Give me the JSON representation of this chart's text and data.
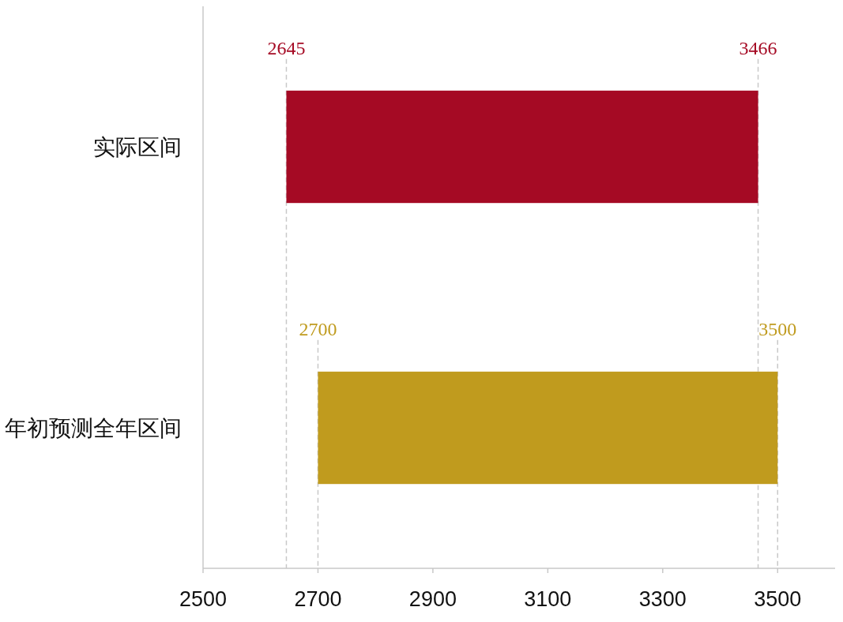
{
  "chart_data": {
    "type": "bar",
    "orientation": "horizontal",
    "categories": [
      "实际区间",
      "年初预测全年区间"
    ],
    "values": [
      821,
      800
    ],
    "base": [
      2645,
      2700
    ],
    "colors": [
      "#a50a24",
      "#c09b1e"
    ],
    "xlim": [
      2500,
      3600
    ],
    "xticks": [
      2500,
      2700,
      2900,
      3100,
      3300,
      3500
    ],
    "grid": false,
    "ref_lines": [
      {
        "axis": "x",
        "value": 2645,
        "label": "2645",
        "color": "#c8c8c8",
        "line_style": "dashed"
      },
      {
        "axis": "x",
        "value": 3466,
        "label": "3466",
        "color": "#c8c8c8",
        "line_style": "dashed"
      },
      {
        "axis": "x",
        "value": 2700,
        "label": "2700",
        "color": "#c8c8c8",
        "line_style": "dashed"
      },
      {
        "axis": "x",
        "value": 3500,
        "label": "3500",
        "color": "#c8c8c8",
        "line_style": "dashed"
      }
    ]
  }
}
